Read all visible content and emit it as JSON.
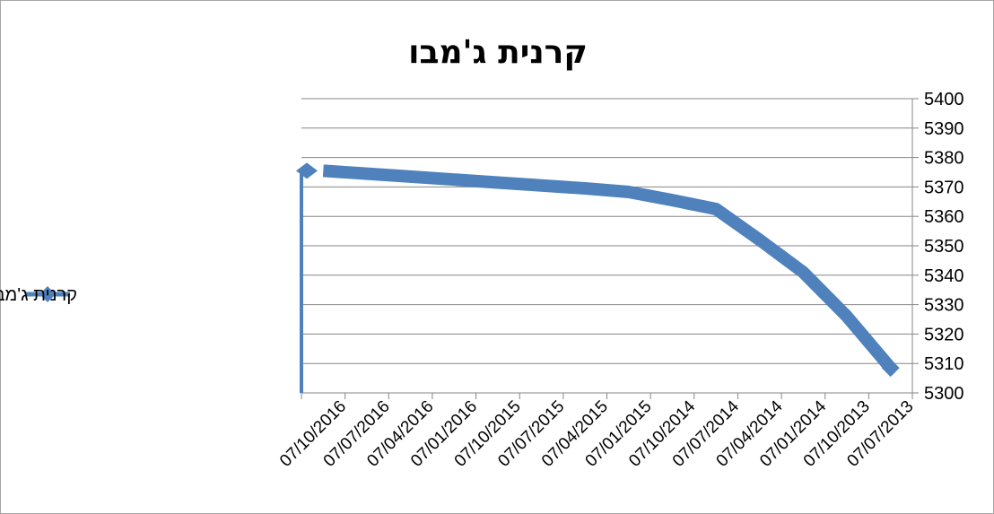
{
  "chart_data": {
    "type": "line",
    "title": "קרנית ג'מבו",
    "xlabel": "",
    "ylabel": "",
    "categories": [
      "07/10/2016",
      "07/07/2016",
      "07/04/2016",
      "07/01/2016",
      "07/10/2015",
      "07/07/2015",
      "07/04/2015",
      "07/01/2015",
      "07/10/2014",
      "07/07/2014",
      "07/04/2014",
      "07/01/2014",
      "07/10/2013",
      "07/07/2013"
    ],
    "series": [
      {
        "name": "קרנית ג'מבו",
        "values": [
          5375.5,
          5374.5,
          5373.5,
          5372.5,
          5371.5,
          5370.5,
          5369.5,
          5368.3,
          5365.5,
          5362.5,
          5352.0,
          5341.0,
          5326.0,
          5308.5
        ],
        "color": "#4f81bd"
      }
    ],
    "ylim": [
      5300,
      5400
    ],
    "yticks": [
      5300,
      5310,
      5320,
      5330,
      5340,
      5350,
      5360,
      5370,
      5380,
      5390,
      5400
    ],
    "x_reversed": true,
    "y_axis_side": "right",
    "grid": true,
    "legend_position": "left"
  }
}
